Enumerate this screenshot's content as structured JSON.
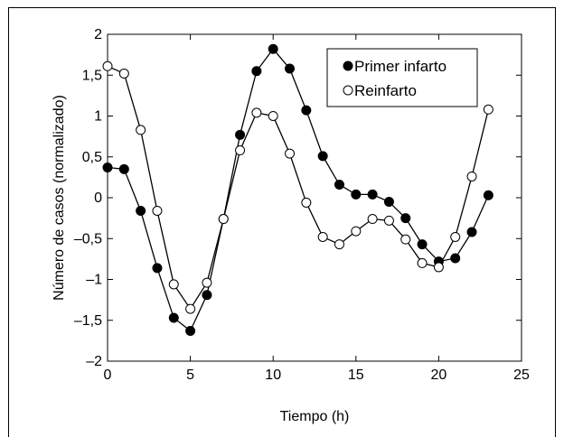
{
  "chart_data": {
    "type": "line",
    "xlabel": "Tiempo (h)",
    "ylabel": "Número de casos (normalizado)",
    "xlim": [
      0,
      25
    ],
    "ylim": [
      -2,
      2
    ],
    "xticks": [
      0,
      5,
      10,
      15,
      20,
      25
    ],
    "xtick_labels": [
      "0",
      "5",
      "10",
      "15",
      "20",
      "25"
    ],
    "yticks": [
      -2,
      -1.5,
      -1,
      -0.5,
      0,
      0.5,
      1,
      1.5,
      2
    ],
    "ytick_labels": [
      "–2",
      "–1,5",
      "–1",
      "–0,5",
      "0",
      "0,5",
      "1",
      "1,5",
      "2"
    ],
    "grid": false,
    "legend": "top-right",
    "series": [
      {
        "name": "Primer infarto",
        "marker": "filled-circle",
        "color": "#000000",
        "x": [
          0,
          1,
          2,
          3,
          4,
          5,
          6,
          7,
          8,
          9,
          10,
          11,
          12,
          13,
          14,
          15,
          16,
          17,
          18,
          19,
          20,
          21,
          22,
          23
        ],
        "values": [
          0.37,
          0.35,
          -0.16,
          -0.86,
          -1.47,
          -1.63,
          -1.19,
          -0.26,
          0.77,
          1.55,
          1.82,
          1.58,
          1.07,
          0.51,
          0.16,
          0.04,
          0.04,
          -0.05,
          -0.25,
          -0.57,
          -0.78,
          -0.74,
          -0.42,
          0.03
        ]
      },
      {
        "name": "Reinfarto",
        "marker": "open-circle",
        "color": "#000000",
        "x": [
          0,
          1,
          2,
          3,
          4,
          5,
          6,
          7,
          8,
          9,
          10,
          11,
          12,
          13,
          14,
          15,
          16,
          17,
          18,
          19,
          20,
          21,
          22,
          23
        ],
        "values": [
          1.61,
          1.52,
          0.83,
          -0.16,
          -1.06,
          -1.36,
          -1.04,
          -0.26,
          0.58,
          1.04,
          1.0,
          0.54,
          -0.06,
          -0.48,
          -0.57,
          -0.41,
          -0.26,
          -0.28,
          -0.51,
          -0.8,
          -0.85,
          -0.48,
          0.26,
          1.08
        ]
      }
    ]
  }
}
